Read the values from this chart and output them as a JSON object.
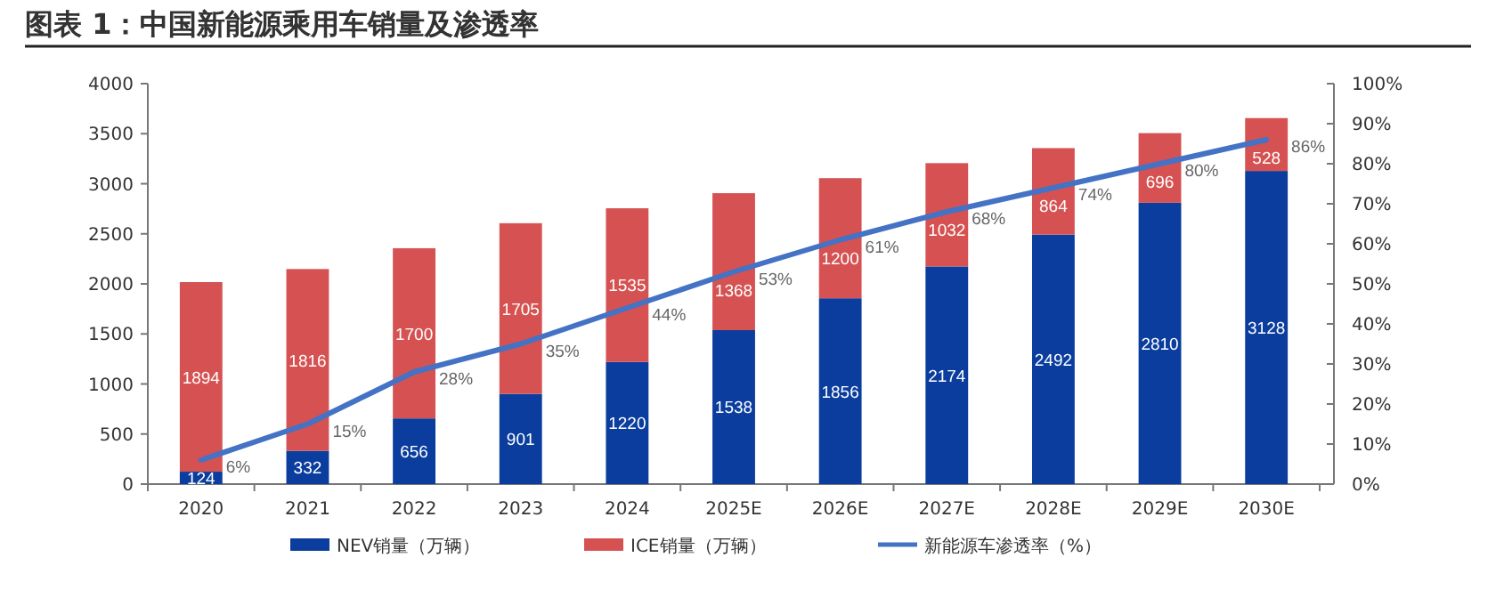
{
  "chart_data": {
    "type": "bar",
    "title": "图表 1：中国新能源乘用车销量及渗透率",
    "categories": [
      "2020",
      "2021",
      "2022",
      "2023",
      "2024",
      "2025E",
      "2026E",
      "2027E",
      "2028E",
      "2029E",
      "2030E"
    ],
    "stacked": true,
    "legend": "bottom",
    "grid": false,
    "ylim": [
      0,
      4000
    ],
    "yticks": [
      0,
      500,
      1000,
      1500,
      2000,
      2500,
      3000,
      3500,
      4000
    ],
    "y2lim": [
      0,
      100
    ],
    "y2ticks": [
      {
        "value": 0,
        "label": "0%"
      },
      {
        "value": 10,
        "label": "10%"
      },
      {
        "value": 20,
        "label": "20%"
      },
      {
        "value": 30,
        "label": "30%"
      },
      {
        "value": 40,
        "label": "40%"
      },
      {
        "value": 50,
        "label": "50%"
      },
      {
        "value": 60,
        "label": "60%"
      },
      {
        "value": 70,
        "label": "70%"
      },
      {
        "value": 80,
        "label": "80%"
      },
      {
        "value": 90,
        "label": "90%"
      },
      {
        "value": 100,
        "label": "100%"
      }
    ],
    "series": [
      {
        "name": "NEV销量（万辆）",
        "color": "#0a3d9e",
        "values": [
          124,
          332,
          656,
          901,
          1220,
          1538,
          1856,
          2174,
          2492,
          2810,
          3128
        ],
        "value_labels": [
          "124",
          "332",
          "656",
          "901",
          "1220",
          "1538",
          "1856",
          "2174",
          "2492",
          "2810",
          "3128"
        ]
      },
      {
        "name": "ICE销量（万辆）",
        "color": "#d65252",
        "values": [
          1894,
          1816,
          1700,
          1705,
          1535,
          1368,
          1200,
          1032,
          864,
          696,
          528
        ],
        "value_labels": [
          "1894",
          "1816",
          "1700",
          "1705",
          "1535",
          "1368",
          "1200",
          "1032",
          "864",
          "696",
          "528"
        ]
      },
      {
        "name": "新能源车渗透率（%）",
        "type": "line",
        "axis": "y2",
        "color": "#4472c4",
        "marker": "none",
        "line_style": "solid",
        "values": [
          6,
          15,
          28,
          35,
          44,
          53,
          61,
          68,
          74,
          80,
          86
        ],
        "value_labels": [
          "6%",
          "15%",
          "28%",
          "35%",
          "44%",
          "53%",
          "61%",
          "68%",
          "74%",
          "80%",
          "86%"
        ]
      }
    ]
  }
}
